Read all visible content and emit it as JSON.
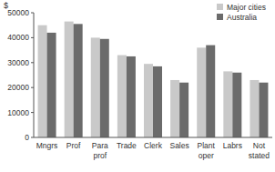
{
  "chart_data": {
    "type": "bar",
    "ylabel": "$",
    "categories": [
      "Mngrs",
      "Prof",
      "Para prof",
      "Trade",
      "Clerk",
      "Sales",
      "Plant oper",
      "Labrs",
      "Not stated"
    ],
    "series": [
      {
        "name": "Major cities",
        "color": "#c9c9c9",
        "values": [
          45000,
          46500,
          40000,
          33000,
          29500,
          23000,
          36000,
          26500,
          23000
        ]
      },
      {
        "name": "Australia",
        "color": "#6b6b6b",
        "values": [
          42000,
          45500,
          39500,
          32500,
          28500,
          22000,
          37000,
          26000,
          22000
        ]
      }
    ],
    "ylim": [
      0,
      50000
    ],
    "yticks": [
      0,
      10000,
      20000,
      30000,
      40000,
      50000
    ],
    "grid": false,
    "legend": "upper right"
  }
}
